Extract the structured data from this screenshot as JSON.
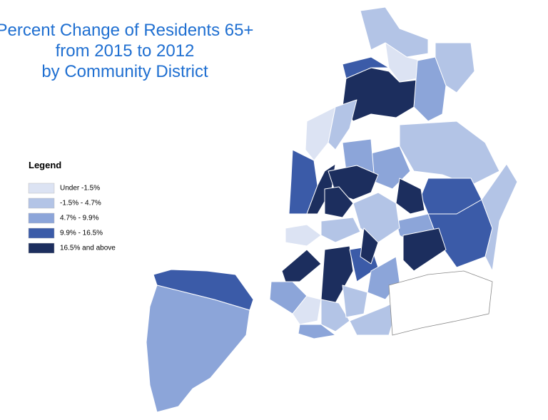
{
  "title": [
    "Percent Change of Residents 65+",
    "from 2015 to 2012",
    "by Community District"
  ],
  "legend": {
    "title": "Legend",
    "items": [
      {
        "label": "Under  -1.5%",
        "color": "#dce3f3"
      },
      {
        "label": "-1.5% - 4.7%",
        "color": "#b3c4e6"
      },
      {
        "label": "4.7% - 9.9%",
        "color": "#8ca5d9"
      },
      {
        "label": "9.9% - 16.5%",
        "color": "#3b5ba8"
      },
      {
        "label": "16.5% and above",
        "color": "#1c2e5e"
      }
    ]
  }
}
